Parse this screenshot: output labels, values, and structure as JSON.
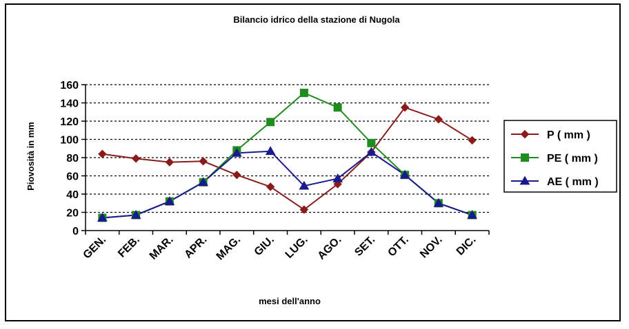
{
  "chart_data": {
    "type": "line",
    "title": "Bilancio idrico della stazione  di Nugola",
    "xlabel": "mesi dell'anno",
    "ylabel": "Piovosità in mm",
    "categories": [
      "GEN.",
      "FEB.",
      "MAR.",
      "APR.",
      "MAG.",
      "GIU.",
      "LUG.",
      "AGO.",
      "SET.",
      "OTT.",
      "NOV.",
      "DIC."
    ],
    "ylim": [
      0,
      160
    ],
    "yticks": [
      0,
      20,
      40,
      60,
      80,
      100,
      120,
      140,
      160
    ],
    "grid": true,
    "legend_position": "right",
    "series": [
      {
        "name": "P ( mm )",
        "color": "#8b1a1a",
        "marker": "diamond",
        "values": [
          84,
          79,
          75,
          76,
          61,
          48,
          23,
          51,
          86,
          135,
          122,
          99
        ]
      },
      {
        "name": "PE ( mm )",
        "color": "#1f8c1f",
        "marker": "square",
        "values": [
          14,
          17,
          32,
          53,
          88,
          119,
          151,
          135,
          96,
          61,
          30,
          17
        ]
      },
      {
        "name": "AE ( mm )",
        "color": "#1a1a8c",
        "marker": "triangle",
        "values": [
          14,
          17,
          32,
          53,
          85,
          87,
          49,
          57,
          86,
          61,
          30,
          17
        ]
      }
    ]
  }
}
